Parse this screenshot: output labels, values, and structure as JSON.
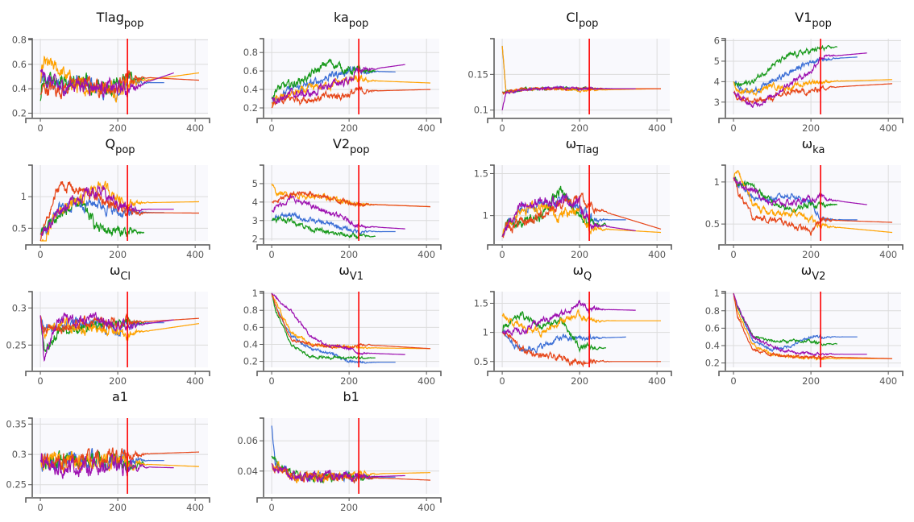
{
  "colors": {
    "chains": [
      "#3c6fd6",
      "#17991a",
      "#ffa200",
      "#e64518",
      "#9c0fb0"
    ],
    "marker": "#ff0000"
  },
  "marker_iteration": 225,
  "chart_data": {
    "type": "line",
    "x_ticks": [
      0,
      200,
      400
    ],
    "xlim": [
      -21,
      433
    ],
    "anchor_iterations": [
      0,
      10,
      50,
      100,
      150,
      200,
      225
    ],
    "chain_end_iterations": [
      320,
      268,
      410,
      410,
      345
    ],
    "panels": [
      {
        "title": "Tlag",
        "sub": "pop",
        "ylim": [
          0.19,
          0.81
        ],
        "yticks": [
          "0.2",
          "0.4",
          "0.6",
          "0.8"
        ],
        "noise": 0.07,
        "series": [
          [
            0.45,
            0.45,
            0.42,
            0.45,
            0.42,
            0.35,
            0.45,
            0.45
          ],
          [
            0.3,
            0.45,
            0.5,
            0.45,
            0.4,
            0.45,
            0.48,
            0.48
          ],
          [
            0.45,
            0.6,
            0.55,
            0.4,
            0.42,
            0.4,
            0.45,
            0.53
          ],
          [
            0.35,
            0.4,
            0.4,
            0.45,
            0.42,
            0.4,
            0.5,
            0.47
          ],
          [
            0.55,
            0.5,
            0.4,
            0.45,
            0.42,
            0.4,
            0.4,
            0.53
          ]
        ]
      },
      {
        "title": "ka",
        "sub": "pop",
        "ylim": [
          0.13,
          0.95
        ],
        "yticks": [
          "0.2",
          "0.4",
          "0.6",
          "0.8"
        ],
        "noise": 0.05,
        "series": [
          [
            0.25,
            0.3,
            0.4,
            0.45,
            0.55,
            0.6,
            0.6,
            0.59
          ],
          [
            0.3,
            0.4,
            0.45,
            0.55,
            0.7,
            0.6,
            0.6,
            0.6
          ],
          [
            0.25,
            0.28,
            0.35,
            0.4,
            0.45,
            0.5,
            0.5,
            0.47
          ],
          [
            0.2,
            0.25,
            0.3,
            0.3,
            0.32,
            0.35,
            0.38,
            0.4
          ],
          [
            0.3,
            0.3,
            0.35,
            0.35,
            0.45,
            0.5,
            0.6,
            0.67
          ]
        ]
      },
      {
        "title": "Cl",
        "sub": "pop",
        "ylim": [
          0.094,
          0.2
        ],
        "yticks": [
          "0.1",
          "0.15"
        ],
        "noise": 0.002,
        "series": [
          [
            0.19,
            0.125,
            0.128,
            0.13,
            0.131,
            0.13,
            0.13,
            0.13
          ],
          [
            0.125,
            0.126,
            0.129,
            0.13,
            0.13,
            0.13,
            0.13,
            0.13
          ],
          [
            0.19,
            0.126,
            0.128,
            0.13,
            0.13,
            0.128,
            0.128,
            0.13
          ],
          [
            0.125,
            0.126,
            0.129,
            0.13,
            0.13,
            0.13,
            0.13,
            0.13
          ],
          [
            0.1,
            0.124,
            0.128,
            0.13,
            0.132,
            0.13,
            0.13,
            0.13
          ]
        ]
      },
      {
        "title": "V1",
        "sub": "pop",
        "ylim": [
          2.4,
          6.1
        ],
        "yticks": [
          "3",
          "4",
          "5",
          "6"
        ],
        "noise": 0.15,
        "series": [
          [
            4,
            3.8,
            3.5,
            4,
            4.5,
            5,
            5.1,
            5.2
          ],
          [
            4,
            3.8,
            4,
            4.8,
            5.3,
            5.5,
            5.6,
            5.7
          ],
          [
            4,
            3.5,
            3.5,
            3.8,
            3.7,
            4,
            4,
            4.1
          ],
          [
            3.5,
            3.3,
            3,
            3.2,
            3.5,
            3.5,
            3.7,
            3.9
          ],
          [
            3.5,
            3.3,
            2.8,
            3.3,
            4,
            4.5,
            5.2,
            5.4
          ]
        ]
      },
      {
        "title": "Q",
        "sub": "pop",
        "ylim": [
          0.3,
          1.5
        ],
        "yticks": [
          "0.5",
          "1"
        ],
        "noise": 0.1,
        "series": [
          [
            0.4,
            0.45,
            0.8,
            0.9,
            0.9,
            0.75,
            0.75,
            0.75
          ],
          [
            0.4,
            0.5,
            0.7,
            0.9,
            0.5,
            0.45,
            0.43,
            0.43
          ],
          [
            0.2,
            0.3,
            0.8,
            0.9,
            1.2,
            1.0,
            0.9,
            0.92
          ],
          [
            0.3,
            0.5,
            1.2,
            1.1,
            1.0,
            0.8,
            0.75,
            0.74
          ],
          [
            0.4,
            0.45,
            0.8,
            1.0,
            1.1,
            0.9,
            0.8,
            0.8
          ]
        ]
      },
      {
        "title": "V2",
        "sub": "pop",
        "ylim": [
          1.9,
          6
        ],
        "yticks": [
          "2",
          "3",
          "4",
          "5"
        ],
        "noise": 0.15,
        "series": [
          [
            3,
            3.2,
            3.3,
            3,
            2.8,
            2.5,
            2.4,
            2.4
          ],
          [
            3,
            3.1,
            3,
            2.6,
            2.3,
            2.2,
            2.15,
            2.15
          ],
          [
            5,
            4.5,
            4.4,
            4.3,
            4.2,
            4,
            3.9,
            3.75
          ],
          [
            4,
            4,
            4.4,
            4.5,
            4.2,
            4,
            3.9,
            3.75
          ],
          [
            3.5,
            3.7,
            4.2,
            3.8,
            3.4,
            3,
            2.7,
            2.55
          ]
        ]
      },
      {
        "title": "ω",
        "sub": "Tlag",
        "ylim": [
          0.7,
          1.6
        ],
        "yticks": [
          "1",
          "1.5"
        ],
        "noise": 0.07,
        "series": [
          [
            0.75,
            0.85,
            1.1,
            1.15,
            1.2,
            1.1,
            0.95,
            0.95
          ],
          [
            0.75,
            0.9,
            0.9,
            1,
            1.3,
            1,
            0.9,
            0.9
          ],
          [
            0.75,
            0.85,
            1.1,
            1.1,
            1.0,
            1.1,
            0.85,
            0.8
          ],
          [
            0.75,
            0.85,
            0.9,
            1.0,
            1.15,
            1.2,
            1.1,
            0.84
          ],
          [
            0.75,
            0.85,
            1.1,
            1.15,
            1.2,
            1.15,
            0.9,
            0.82
          ]
        ]
      },
      {
        "title": "ω",
        "sub": "ka",
        "ylim": [
          0.3,
          1.2
        ],
        "yticks": [
          "0.5",
          "1"
        ],
        "noise": 0.04,
        "series": [
          [
            1.05,
            1.0,
            0.8,
            0.8,
            0.85,
            0.75,
            0.55,
            0.55
          ],
          [
            1.05,
            1.0,
            0.95,
            0.75,
            0.65,
            0.75,
            0.73,
            0.73
          ],
          [
            1.05,
            1.12,
            0.75,
            0.6,
            0.65,
            0.55,
            0.48,
            0.4
          ],
          [
            1.05,
            0.9,
            0.58,
            0.55,
            0.5,
            0.4,
            0.55,
            0.52
          ],
          [
            1.05,
            1.0,
            0.9,
            0.75,
            0.75,
            0.8,
            0.8,
            0.73
          ]
        ]
      },
      {
        "title": "ω",
        "sub": "Cl",
        "ylim": [
          0.22,
          0.322
        ],
        "yticks": [
          "0.25",
          "0.3"
        ],
        "noise": 0.008,
        "series": [
          [
            0.29,
            0.27,
            0.28,
            0.28,
            0.28,
            0.27,
            0.28,
            0.28
          ],
          [
            0.29,
            0.24,
            0.27,
            0.27,
            0.28,
            0.28,
            0.28,
            0.28
          ],
          [
            0.29,
            0.27,
            0.28,
            0.27,
            0.27,
            0.27,
            0.265,
            0.279
          ],
          [
            0.29,
            0.27,
            0.275,
            0.28,
            0.28,
            0.28,
            0.28,
            0.286
          ],
          [
            0.29,
            0.23,
            0.29,
            0.28,
            0.285,
            0.28,
            0.275,
            0.284
          ]
        ]
      },
      {
        "title": "ω",
        "sub": "V1",
        "ylim": [
          0.13,
          1.02
        ],
        "yticks": [
          "0.2",
          "0.4",
          "0.6",
          "0.8",
          "1"
        ],
        "noise": 0.02,
        "series": [
          [
            1,
            0.85,
            0.5,
            0.35,
            0.3,
            0.2,
            0.19,
            0.19
          ],
          [
            1,
            0.8,
            0.4,
            0.25,
            0.25,
            0.24,
            0.24,
            0.24
          ],
          [
            1,
            0.9,
            0.55,
            0.4,
            0.38,
            0.36,
            0.36,
            0.35
          ],
          [
            1,
            0.85,
            0.45,
            0.4,
            0.38,
            0.38,
            0.4,
            0.35
          ],
          [
            1,
            0.95,
            0.8,
            0.5,
            0.38,
            0.35,
            0.3,
            0.28
          ]
        ]
      },
      {
        "title": "ω",
        "sub": "Q",
        "ylim": [
          0.4,
          1.7
        ],
        "yticks": [
          "0.5",
          "1",
          "1.5"
        ],
        "noise": 0.06,
        "series": [
          [
            1.0,
            0.95,
            0.7,
            0.75,
            0.9,
            0.9,
            0.9,
            0.92
          ],
          [
            1.0,
            1.1,
            1.3,
            1.1,
            1.2,
            0.75,
            0.73,
            0.73
          ],
          [
            1.3,
            1.2,
            1.1,
            1.0,
            1.2,
            1.3,
            1.2,
            1.2
          ],
          [
            1.0,
            1.0,
            0.7,
            0.6,
            0.55,
            0.5,
            0.5,
            0.5
          ],
          [
            1.0,
            1.05,
            1.0,
            1.2,
            1.3,
            1.5,
            1.4,
            1.38
          ]
        ]
      },
      {
        "title": "ω",
        "sub": "V2",
        "ylim": [
          0.15,
          1.02
        ],
        "yticks": [
          "0.2",
          "0.4",
          "0.6",
          "0.8",
          "1"
        ],
        "noise": 0.02,
        "series": [
          [
            1,
            0.85,
            0.45,
            0.35,
            0.4,
            0.5,
            0.5,
            0.5
          ],
          [
            1,
            0.85,
            0.5,
            0.45,
            0.45,
            0.45,
            0.42,
            0.42
          ],
          [
            1,
            0.8,
            0.4,
            0.3,
            0.28,
            0.25,
            0.25,
            0.25
          ],
          [
            1,
            0.75,
            0.35,
            0.3,
            0.28,
            0.27,
            0.27,
            0.25
          ],
          [
            1,
            0.85,
            0.5,
            0.38,
            0.33,
            0.3,
            0.3,
            0.3
          ]
        ]
      },
      {
        "title": "a1",
        "sub": "",
        "ylim": [
          0.235,
          0.36
        ],
        "yticks": [
          "0.25",
          "0.3",
          "0.35"
        ],
        "noise": 0.015,
        "series": [
          [
            0.29,
            0.29,
            0.29,
            0.29,
            0.29,
            0.285,
            0.29,
            0.29
          ],
          [
            0.29,
            0.29,
            0.29,
            0.29,
            0.29,
            0.29,
            0.285,
            0.285
          ],
          [
            0.29,
            0.29,
            0.29,
            0.29,
            0.29,
            0.29,
            0.285,
            0.28
          ],
          [
            0.29,
            0.29,
            0.29,
            0.29,
            0.29,
            0.295,
            0.3,
            0.304
          ],
          [
            0.29,
            0.28,
            0.28,
            0.28,
            0.28,
            0.28,
            0.28,
            0.278
          ]
        ]
      },
      {
        "title": "b1",
        "sub": "",
        "ylim": [
          0.025,
          0.075
        ],
        "yticks": [
          "0.04",
          "0.06"
        ],
        "noise": 0.003,
        "series": [
          [
            0.07,
            0.045,
            0.037,
            0.036,
            0.036,
            0.036,
            0.036,
            0.036
          ],
          [
            0.05,
            0.045,
            0.038,
            0.036,
            0.036,
            0.036,
            0.036,
            0.036
          ],
          [
            0.045,
            0.042,
            0.037,
            0.036,
            0.036,
            0.037,
            0.038,
            0.039
          ],
          [
            0.045,
            0.042,
            0.037,
            0.036,
            0.036,
            0.036,
            0.036,
            0.034
          ],
          [
            0.045,
            0.042,
            0.037,
            0.036,
            0.036,
            0.036,
            0.036,
            0.037
          ]
        ]
      }
    ]
  }
}
